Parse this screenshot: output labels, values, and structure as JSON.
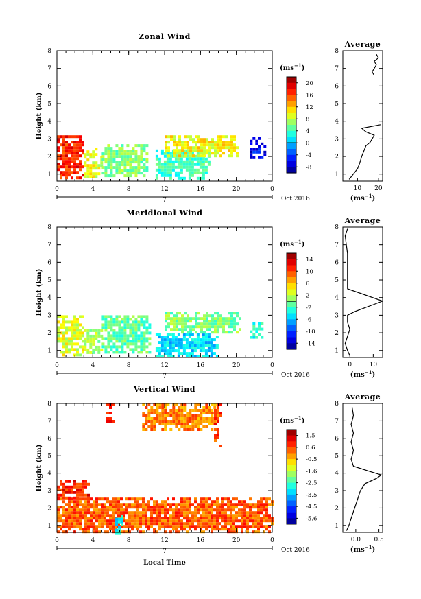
{
  "figure": {
    "bottom_xlabel": "Local Time",
    "date_label": "Oct 2016",
    "day_label": "7"
  },
  "chart_data": [
    {
      "type": "heatmap",
      "title": "Zonal Wind",
      "ylabel": "Height (km)",
      "xlabel": "",
      "xlim": [
        0,
        24
      ],
      "ylim": [
        0.6,
        8
      ],
      "xticks": [
        "0",
        "4",
        "8",
        "12",
        "16",
        "20",
        "0"
      ],
      "yticks": [
        "1",
        "2",
        "3",
        "4",
        "5",
        "6",
        "7",
        "8"
      ],
      "colorbar": {
        "unit_base": "(ms",
        "unit_exp": "−1",
        "unit_close": ")",
        "ticks": [
          "20",
          "16",
          "12",
          "8",
          "4",
          "0",
          "-4",
          "-8"
        ],
        "range": [
          -10,
          22
        ],
        "zero_line": 0
      },
      "regions": [
        {
          "x0": 0.0,
          "x1": 3.0,
          "y0": 0.8,
          "y1": 3.2,
          "value": 17
        },
        {
          "x0": 3.0,
          "x1": 5.0,
          "y0": 0.9,
          "y1": 2.5,
          "value": 9
        },
        {
          "x0": 5.0,
          "x1": 10.0,
          "y0": 0.9,
          "y1": 2.7,
          "value": 6
        },
        {
          "x0": 11.0,
          "x1": 17.0,
          "y0": 0.7,
          "y1": 2.4,
          "value": 4
        },
        {
          "x0": 12.0,
          "x1": 20.0,
          "y0": 2.0,
          "y1": 3.2,
          "value": 10
        },
        {
          "x0": 21.5,
          "x1": 23.3,
          "y0": 2.0,
          "y1": 3.1,
          "value": -6
        }
      ],
      "profile": {
        "title": "Average",
        "xlabel_base": "(ms",
        "xlabel_exp": "−1",
        "xlabel_close": ")",
        "xticks": [
          "10",
          "20"
        ],
        "xlim": [
          3,
          22
        ],
        "heights": [
          0.7,
          1.0,
          1.3,
          1.6,
          2.0,
          2.3,
          2.6,
          2.8,
          3.0,
          3.2,
          3.4,
          3.6,
          3.8
        ],
        "values": [
          6,
          8,
          10,
          11,
          12,
          13,
          14,
          16,
          17,
          18,
          14,
          12,
          21
        ],
        "upper_heights": [
          6.6,
          6.8,
          7.0,
          7.2,
          7.4,
          7.6,
          7.8
        ],
        "upper_values": [
          18,
          17,
          18,
          19,
          18,
          20,
          19
        ]
      }
    },
    {
      "type": "heatmap",
      "title": "Meridional Wind",
      "ylabel": "Height (km)",
      "xlabel": "",
      "xlim": [
        0,
        24
      ],
      "ylim": [
        0.6,
        8
      ],
      "xticks": [
        "0",
        "4",
        "8",
        "12",
        "16",
        "20",
        "0"
      ],
      "yticks": [
        "1",
        "2",
        "3",
        "4",
        "5",
        "6",
        "7",
        "8"
      ],
      "colorbar": {
        "unit_base": "(ms",
        "unit_exp": "−1",
        "unit_close": ")",
        "ticks": [
          "14",
          "10",
          "6",
          "2",
          "-2",
          "-6",
          "-10",
          "-14"
        ],
        "range": [
          -16,
          16
        ],
        "zero_line": 0
      },
      "regions": [
        {
          "x0": 0.0,
          "x1": 3.0,
          "y0": 0.8,
          "y1": 3.0,
          "value": 3
        },
        {
          "x0": 3.0,
          "x1": 5.0,
          "y0": 0.9,
          "y1": 2.2,
          "value": 1
        },
        {
          "x0": 5.0,
          "x1": 10.5,
          "y0": 0.9,
          "y1": 3.0,
          "value": -1
        },
        {
          "x0": 11.0,
          "x1": 18.0,
          "y0": 0.7,
          "y1": 2.0,
          "value": -5
        },
        {
          "x0": 12.0,
          "x1": 20.5,
          "y0": 2.0,
          "y1": 3.2,
          "value": 0
        },
        {
          "x0": 21.5,
          "x1": 23.0,
          "y0": 1.8,
          "y1": 2.6,
          "value": -3
        }
      ],
      "profile": {
        "title": "Average",
        "xlabel_base": "(ms",
        "xlabel_exp": "−1",
        "xlabel_close": ")",
        "xticks": [
          "0",
          "10"
        ],
        "xlim": [
          -3,
          14
        ],
        "heights": [
          0.7,
          1.0,
          1.4,
          1.8,
          2.2,
          2.6,
          3.0,
          3.2,
          3.4,
          3.6,
          3.8,
          4.5,
          5.5,
          6.5,
          7.5,
          7.9
        ],
        "values": [
          0,
          -1,
          -2,
          -1,
          0,
          -1,
          -1,
          2,
          6,
          10,
          14,
          -1,
          -1,
          -1,
          -2,
          -1
        ]
      }
    },
    {
      "type": "heatmap",
      "title": "Vertical Wind",
      "ylabel": "Height (km)",
      "xlabel": "Local Time",
      "xlim": [
        0,
        24
      ],
      "ylim": [
        0.6,
        8
      ],
      "xticks": [
        "0",
        "4",
        "8",
        "12",
        "16",
        "20",
        "0"
      ],
      "yticks": [
        "1",
        "2",
        "3",
        "4",
        "5",
        "6",
        "7",
        "8"
      ],
      "colorbar": {
        "unit_base": "(ms",
        "unit_exp": "−1",
        "unit_close": ")",
        "ticks": [
          "1.5",
          "0.6",
          "-0.5",
          "-1.6",
          "-2.5",
          "-3.5",
          "-4.5",
          "-5.6"
        ],
        "range": [
          -6,
          2
        ],
        "zero_line": null
      },
      "regions": [
        {
          "x0": 0.0,
          "x1": 24.0,
          "y0": 0.6,
          "y1": 2.6,
          "value": 0.3
        },
        {
          "x0": 0.0,
          "x1": 3.5,
          "y0": 2.6,
          "y1": 3.6,
          "value": 0.8
        },
        {
          "x0": 5.5,
          "x1": 6.2,
          "y0": 7.0,
          "y1": 8.0,
          "value": 0.7
        },
        {
          "x0": 9.5,
          "x1": 18.0,
          "y0": 6.5,
          "y1": 8.0,
          "value": 0.0
        },
        {
          "x0": 17.5,
          "x1": 18.2,
          "y0": 5.6,
          "y1": 8.0,
          "value": 0.6
        },
        {
          "x0": 6.5,
          "x1": 7.2,
          "y0": 0.6,
          "y1": 1.6,
          "value": -3.0
        }
      ],
      "profile": {
        "title": "Average",
        "xlabel_base": "(ms",
        "xlabel_exp": "−1",
        "xlabel_close": ")",
        "xticks": [
          "0.0",
          "0.5"
        ],
        "xlim": [
          -0.28,
          0.58
        ],
        "heights": [
          0.7,
          1.0,
          1.4,
          1.8,
          2.2,
          2.6,
          3.0,
          3.4,
          3.7,
          3.9,
          4.1,
          4.4,
          4.8,
          5.3,
          5.8,
          6.3,
          6.8,
          7.3,
          7.8
        ],
        "values": [
          -0.2,
          -0.15,
          -0.1,
          -0.05,
          0.0,
          0.05,
          0.1,
          0.2,
          0.45,
          0.55,
          0.3,
          -0.05,
          -0.1,
          -0.05,
          -0.1,
          -0.05,
          -0.1,
          -0.05,
          -0.08
        ]
      }
    }
  ]
}
